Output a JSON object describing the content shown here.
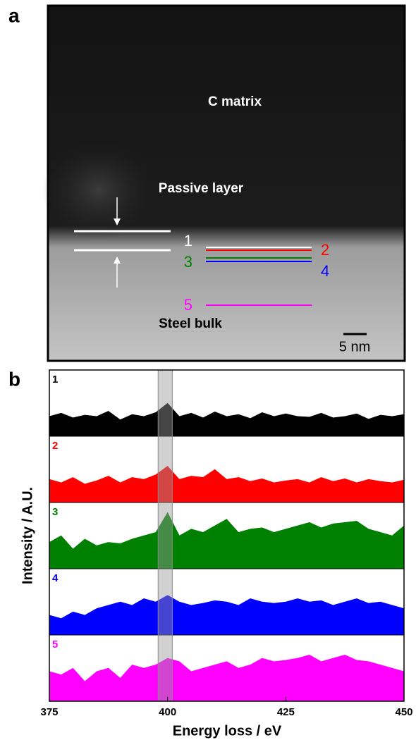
{
  "panel_labels": [
    "a",
    "b"
  ],
  "image": {
    "annotations": [
      "C matrix",
      "Passive layer",
      "Steel bulk"
    ],
    "scale_bar": "5 nm",
    "profile_lines": [
      {
        "label": "1",
        "color": "#ffffff"
      },
      {
        "label": "2",
        "color": "#ff0000"
      },
      {
        "label": "3",
        "color": "#008000"
      },
      {
        "label": "4",
        "color": "#0000ff"
      },
      {
        "label": "5",
        "color": "#ff00ff"
      }
    ]
  },
  "chart_data": {
    "type": "area",
    "x_label": "Energy loss / eV",
    "y_label": "Intensity / A.U.",
    "x": [
      375,
      377.5,
      380,
      382.5,
      385,
      387.5,
      390,
      392.5,
      395,
      397.5,
      400,
      402.5,
      405,
      407.5,
      410,
      412.5,
      415,
      417.5,
      420,
      422.5,
      425,
      427.5,
      430,
      432.5,
      435,
      437.5,
      440,
      442.5,
      445,
      447.5,
      450
    ],
    "xlim": [
      375,
      450
    ],
    "xticks": [
      375,
      400,
      425,
      450
    ],
    "ylim": [
      0,
      1
    ],
    "highlight": [
      398,
      401
    ],
    "series": [
      {
        "name": "1",
        "color": "#000000",
        "values": [
          0.3,
          0.35,
          0.28,
          0.32,
          0.3,
          0.38,
          0.25,
          0.33,
          0.3,
          0.36,
          0.5,
          0.3,
          0.35,
          0.28,
          0.37,
          0.3,
          0.33,
          0.27,
          0.36,
          0.3,
          0.34,
          0.3,
          0.29,
          0.35,
          0.28,
          0.3,
          0.34,
          0.26,
          0.32,
          0.3,
          0.33
        ]
      },
      {
        "name": "2",
        "color": "#ff0000",
        "values": [
          0.35,
          0.3,
          0.38,
          0.28,
          0.33,
          0.4,
          0.3,
          0.38,
          0.35,
          0.42,
          0.55,
          0.35,
          0.4,
          0.38,
          0.5,
          0.35,
          0.38,
          0.32,
          0.36,
          0.3,
          0.33,
          0.35,
          0.3,
          0.38,
          0.32,
          0.36,
          0.3,
          0.35,
          0.32,
          0.3,
          0.34
        ]
      },
      {
        "name": "3",
        "color": "#008000",
        "values": [
          0.4,
          0.5,
          0.3,
          0.45,
          0.35,
          0.4,
          0.38,
          0.45,
          0.5,
          0.55,
          0.85,
          0.5,
          0.6,
          0.55,
          0.65,
          0.75,
          0.55,
          0.6,
          0.62,
          0.55,
          0.6,
          0.65,
          0.7,
          0.62,
          0.68,
          0.7,
          0.72,
          0.6,
          0.55,
          0.5,
          0.65
        ]
      },
      {
        "name": "4",
        "color": "#0000ff",
        "values": [
          0.3,
          0.25,
          0.35,
          0.3,
          0.4,
          0.45,
          0.5,
          0.45,
          0.55,
          0.5,
          0.6,
          0.5,
          0.45,
          0.48,
          0.52,
          0.5,
          0.45,
          0.55,
          0.5,
          0.48,
          0.5,
          0.55,
          0.5,
          0.52,
          0.45,
          0.5,
          0.55,
          0.48,
          0.5,
          0.45,
          0.4
        ]
      },
      {
        "name": "5",
        "color": "#ff00ff",
        "values": [
          0.45,
          0.4,
          0.5,
          0.3,
          0.45,
          0.5,
          0.35,
          0.55,
          0.5,
          0.55,
          0.65,
          0.6,
          0.45,
          0.5,
          0.55,
          0.6,
          0.5,
          0.55,
          0.65,
          0.6,
          0.62,
          0.65,
          0.7,
          0.6,
          0.65,
          0.7,
          0.62,
          0.6,
          0.55,
          0.5,
          0.45
        ]
      }
    ]
  }
}
